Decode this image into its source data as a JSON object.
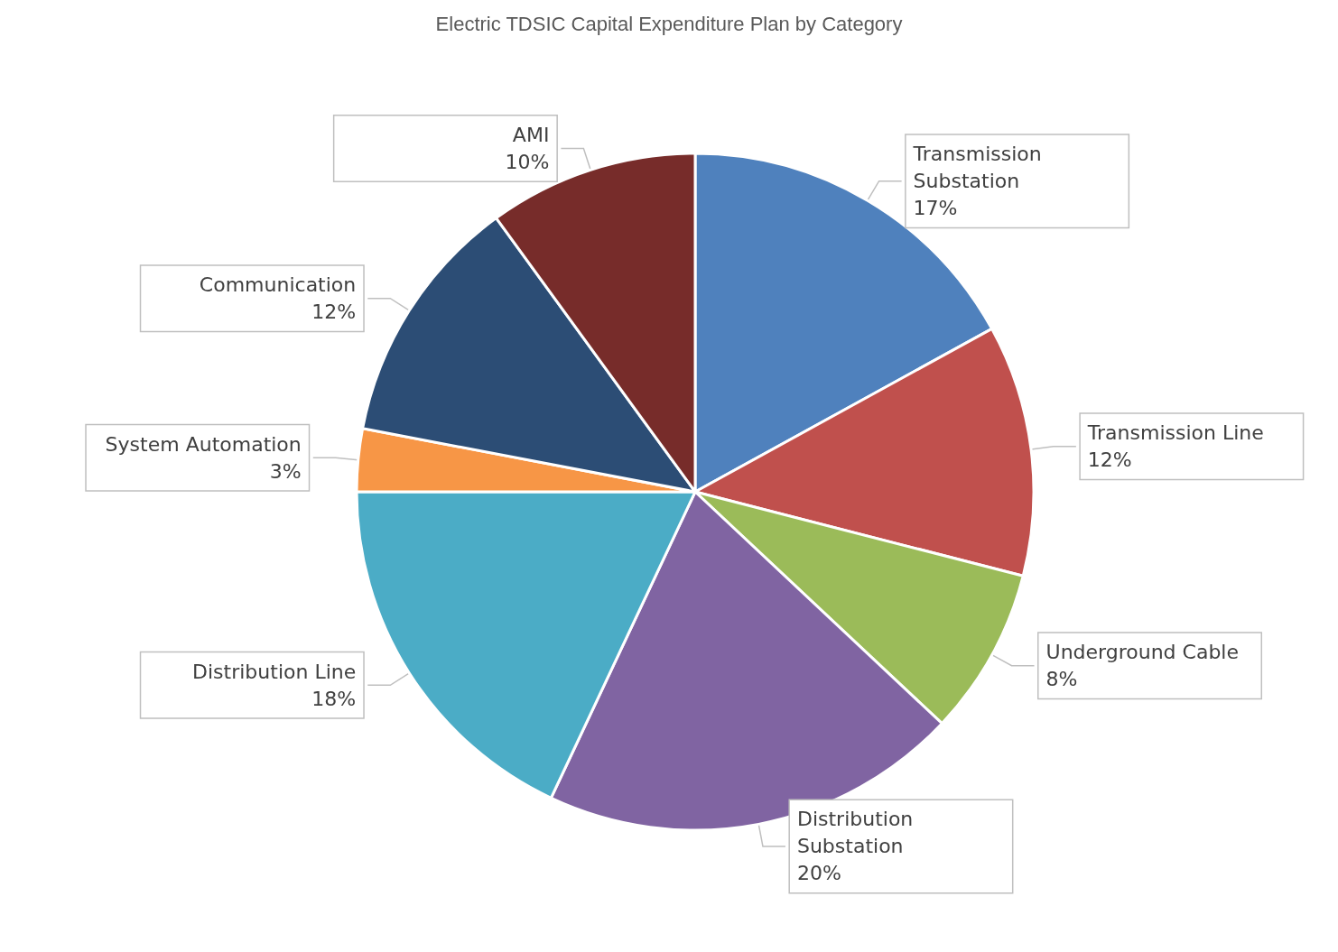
{
  "chart_data": {
    "type": "pie",
    "title": "Electric TDSIC Capital Expenditure Plan by Category",
    "categories": [
      "Transmission Substation",
      "Transmission Line",
      "Underground Cable",
      "Distribution Substation",
      "Distribution Line",
      "System Automation",
      "Communication",
      "AMI"
    ],
    "values": [
      17,
      12,
      8,
      20,
      18,
      3,
      12,
      10
    ],
    "value_labels": [
      "17%",
      "12%",
      "8%",
      "20%",
      "18%",
      "3%",
      "12%",
      "10%"
    ],
    "colors": [
      "#4f81bd",
      "#c0504d",
      "#9bbb59",
      "#8064a2",
      "#4bacc6",
      "#f79646",
      "#2c4d75",
      "#772c2a"
    ],
    "legend": false
  }
}
